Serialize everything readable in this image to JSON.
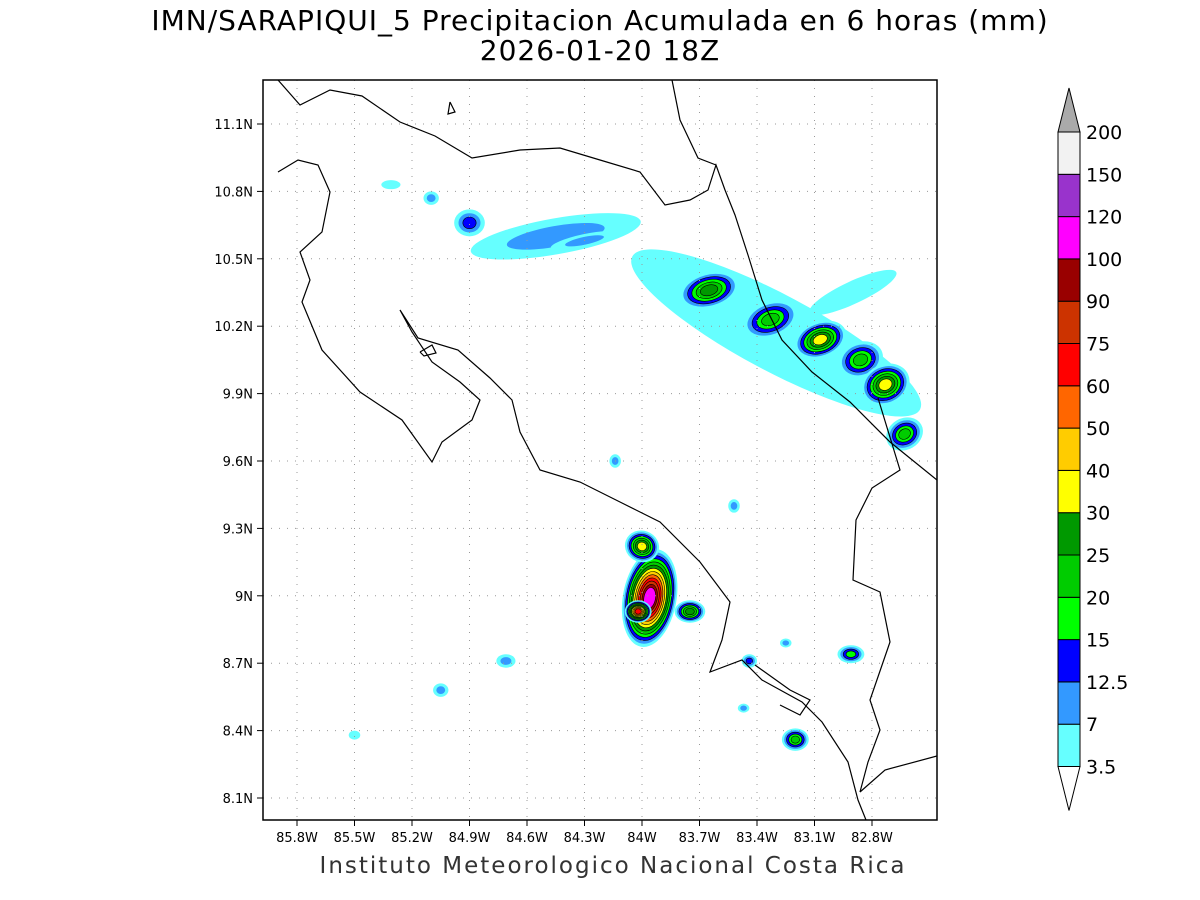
{
  "title": "IMN/SARAPIQUI_5 Precipitacion Acumulada en 6 horas (mm)",
  "subtitle": "2026-01-20 18Z",
  "credit": "Instituto Meteorologico Nacional Costa Rica",
  "chart_data": {
    "type": "heatmap",
    "lon_ticks": [
      "85.8W",
      "85.5W",
      "85.2W",
      "84.9W",
      "84.6W",
      "84.3W",
      "84W",
      "83.7W",
      "83.4W",
      "83.1W",
      "82.8W"
    ],
    "lon_values": [
      -85.8,
      -85.5,
      -85.2,
      -84.9,
      -84.6,
      -84.3,
      -84.0,
      -83.7,
      -83.4,
      -83.1,
      -82.8
    ],
    "lat_ticks": [
      "11.1N",
      "10.8N",
      "10.5N",
      "10.2N",
      "9.9N",
      "9.6N",
      "9.3N",
      "9N",
      "8.7N",
      "8.4N",
      "8.1N"
    ],
    "lat_values": [
      11.1,
      10.8,
      10.5,
      10.2,
      9.9,
      9.6,
      9.3,
      9.0,
      8.7,
      8.4,
      8.1
    ],
    "lon_range": [
      -85.98,
      -82.46
    ],
    "lat_range": [
      8.0,
      11.3
    ],
    "grid": true,
    "colorbar": {
      "labels": [
        "3.5",
        "7",
        "12.5",
        "15",
        "20",
        "25",
        "30",
        "40",
        "50",
        "60",
        "75",
        "90",
        "100",
        "120",
        "150",
        "200"
      ],
      "levels": [
        3.5,
        7,
        12.5,
        15,
        20,
        25,
        30,
        40,
        50,
        60,
        75,
        90,
        100,
        120,
        150,
        200
      ],
      "colors": [
        "#66ffff",
        "#3399ff",
        "#0000ff",
        "#00ff00",
        "#00cc00",
        "#009900",
        "#ffff00",
        "#ffcc00",
        "#ff6600",
        "#ff0000",
        "#cc3300",
        "#990000",
        "#ff00ff",
        "#9933cc",
        "#f2f2f2",
        "#aaaaaa"
      ]
    },
    "cells": [
      {
        "lon": -83.3,
        "lat": 10.17,
        "a": 0.85,
        "b": 0.17,
        "rot": 28,
        "peak": 6
      },
      {
        "lon": -84.45,
        "lat": 10.6,
        "a": 0.45,
        "b": 0.08,
        "rot": -10,
        "peak": 10
      },
      {
        "lon": -84.9,
        "lat": 10.66,
        "a": 0.08,
        "b": 0.06,
        "rot": 0,
        "peak": 14
      },
      {
        "lon": -84.3,
        "lat": 10.58,
        "a": 0.18,
        "b": 0.03,
        "rot": -12,
        "peak": 9
      },
      {
        "lon": -83.65,
        "lat": 10.36,
        "a": 0.16,
        "b": 0.08,
        "rot": -15,
        "peak": 27
      },
      {
        "lon": -83.33,
        "lat": 10.23,
        "a": 0.15,
        "b": 0.08,
        "rot": -20,
        "peak": 22
      },
      {
        "lon": -83.07,
        "lat": 10.14,
        "a": 0.14,
        "b": 0.08,
        "rot": -20,
        "peak": 33
      },
      {
        "lon": -82.86,
        "lat": 10.05,
        "a": 0.12,
        "b": 0.08,
        "rot": -20,
        "peak": 22
      },
      {
        "lon": -82.73,
        "lat": 9.94,
        "a": 0.13,
        "b": 0.09,
        "rot": -25,
        "peak": 35
      },
      {
        "lon": -82.63,
        "lat": 9.72,
        "a": 0.1,
        "b": 0.07,
        "rot": -30,
        "peak": 22
      },
      {
        "lon": -82.9,
        "lat": 10.35,
        "a": 0.25,
        "b": 0.05,
        "rot": -25,
        "peak": 5
      },
      {
        "lon": -83.96,
        "lat": 8.99,
        "a": 0.14,
        "b": 0.22,
        "rot": 10,
        "peak": 110
      },
      {
        "lon": -84.02,
        "lat": 8.93,
        "a": 0.07,
        "b": 0.05,
        "rot": 0,
        "peak": 70
      },
      {
        "lon": -84.0,
        "lat": 9.22,
        "a": 0.09,
        "b": 0.07,
        "rot": 20,
        "peak": 35
      },
      {
        "lon": -83.75,
        "lat": 8.93,
        "a": 0.08,
        "b": 0.05,
        "rot": 0,
        "peak": 28
      },
      {
        "lon": -82.91,
        "lat": 8.74,
        "a": 0.07,
        "b": 0.04,
        "rot": 0,
        "peak": 16
      },
      {
        "lon": -83.2,
        "lat": 8.36,
        "a": 0.07,
        "b": 0.05,
        "rot": 0,
        "peak": 22
      },
      {
        "lon": -84.14,
        "lat": 9.6,
        "a": 0.03,
        "b": 0.03,
        "rot": 0,
        "peak": 10
      },
      {
        "lon": -85.05,
        "lat": 8.58,
        "a": 0.04,
        "b": 0.03,
        "rot": 0,
        "peak": 8
      },
      {
        "lon": -84.71,
        "lat": 8.71,
        "a": 0.05,
        "b": 0.03,
        "rot": 0,
        "peak": 8
      },
      {
        "lon": -85.5,
        "lat": 8.38,
        "a": 0.03,
        "b": 0.02,
        "rot": 0,
        "peak": 5
      },
      {
        "lon": -85.31,
        "lat": 10.83,
        "a": 0.05,
        "b": 0.02,
        "rot": 0,
        "peak": 5
      },
      {
        "lon": -85.1,
        "lat": 10.77,
        "a": 0.04,
        "b": 0.03,
        "rot": 0,
        "peak": 8
      },
      {
        "lon": -83.44,
        "lat": 8.71,
        "a": 0.04,
        "b": 0.03,
        "rot": 0,
        "peak": 14
      },
      {
        "lon": -83.52,
        "lat": 9.4,
        "a": 0.03,
        "b": 0.03,
        "rot": 0,
        "peak": 8
      },
      {
        "lon": -83.47,
        "lat": 8.5,
        "a": 0.03,
        "b": 0.02,
        "rot": 0,
        "peak": 8
      },
      {
        "lon": -83.25,
        "lat": 8.79,
        "a": 0.03,
        "b": 0.02,
        "rot": 0,
        "peak": 8
      }
    ]
  }
}
